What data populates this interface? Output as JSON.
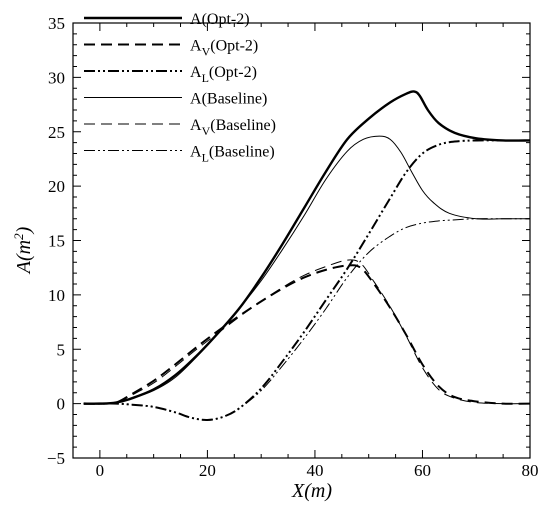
{
  "chart_data": {
    "type": "line",
    "title": "",
    "xlabel": "X(m)",
    "ylabel": "A(m²)",
    "xlim": [
      -5,
      80
    ],
    "ylim": [
      -5,
      35
    ],
    "xticks": [
      0,
      20,
      40,
      60,
      80
    ],
    "yticks": [
      -5,
      0,
      5,
      10,
      15,
      20,
      25,
      30,
      35
    ],
    "grid": false,
    "legend_position": "top-left",
    "series": [
      {
        "name": "A(Opt-2)",
        "style": "solid-thick",
        "x": [
          -3,
          0,
          3,
          6,
          10,
          14,
          18,
          22,
          26,
          30,
          34,
          38,
          42,
          46,
          50,
          54,
          57,
          58.5,
          59.5,
          61,
          63,
          66,
          70,
          75,
          80
        ],
        "y": [
          0,
          0,
          0.1,
          0.5,
          1.3,
          2.6,
          4.4,
          6.5,
          8.8,
          11.6,
          14.7,
          18.0,
          21.3,
          24.3,
          26.2,
          27.7,
          28.5,
          28.7,
          28.3,
          27.0,
          25.8,
          24.9,
          24.4,
          24.2,
          24.2
        ]
      },
      {
        "name": "A_V(Opt-2)",
        "style": "dashed-thick",
        "x": [
          -3,
          0,
          3,
          6,
          10,
          14,
          18,
          22,
          26,
          30,
          34,
          38,
          42,
          46,
          48.5,
          51,
          54,
          57,
          60,
          63,
          66,
          70,
          75,
          80
        ],
        "y": [
          0,
          0,
          0.1,
          0.9,
          2.1,
          3.6,
          5.2,
          6.7,
          8.1,
          9.4,
          10.6,
          11.6,
          12.3,
          12.7,
          12.5,
          11.0,
          8.8,
          6.3,
          3.6,
          1.6,
          0.6,
          0.2,
          0,
          0
        ]
      },
      {
        "name": "A_L(Opt-2)",
        "style": "dashdotdot-thick",
        "x": [
          -3,
          0,
          3,
          6,
          10,
          14,
          17,
          20,
          23,
          26,
          30,
          34,
          38,
          42,
          46,
          50,
          54,
          57,
          60,
          63,
          66,
          70,
          75,
          80
        ],
        "y": [
          0,
          0,
          0,
          -0.1,
          -0.3,
          -0.8,
          -1.3,
          -1.5,
          -1.2,
          -0.4,
          1.4,
          3.9,
          6.6,
          9.5,
          12.4,
          15.6,
          18.9,
          21.3,
          23.0,
          23.8,
          24.1,
          24.2,
          24.2,
          24.2
        ]
      },
      {
        "name": "A(Baseline)",
        "style": "solid-thin",
        "x": [
          -3,
          0,
          3,
          6,
          10,
          14,
          18,
          22,
          26,
          30,
          34,
          38,
          42,
          46,
          49,
          52,
          54,
          56,
          58,
          60,
          62,
          65,
          70,
          75,
          80
        ],
        "y": [
          0,
          0,
          0.1,
          0.5,
          1.2,
          2.4,
          4.3,
          6.5,
          8.8,
          11.3,
          14.2,
          17.3,
          20.6,
          23.2,
          24.3,
          24.6,
          24.3,
          23.1,
          21.3,
          19.6,
          18.5,
          17.5,
          17.0,
          17.0,
          17.0
        ]
      },
      {
        "name": "A_V(Baseline)",
        "style": "dashed-thin",
        "x": [
          -3,
          0,
          3,
          6,
          10,
          14,
          18,
          22,
          26,
          30,
          34,
          38,
          42,
          46,
          48.5,
          51,
          54,
          57,
          60,
          63,
          66,
          70,
          75,
          80
        ],
        "y": [
          0,
          0,
          0.1,
          0.8,
          1.9,
          3.4,
          5.0,
          6.5,
          8.0,
          9.4,
          10.7,
          11.8,
          12.6,
          13.2,
          12.9,
          11.2,
          8.9,
          6.2,
          3.3,
          1.3,
          0.5,
          0.1,
          0,
          0
        ]
      },
      {
        "name": "A_L(Baseline)",
        "style": "dashdotdot-thin",
        "x": [
          -3,
          0,
          3,
          6,
          10,
          14,
          17,
          20,
          23,
          26,
          30,
          34,
          38,
          42,
          46,
          50,
          54,
          57,
          60,
          63,
          66,
          70,
          75,
          80
        ],
        "y": [
          0,
          0,
          0,
          -0.1,
          -0.3,
          -0.8,
          -1.3,
          -1.5,
          -1.2,
          -0.4,
          1.2,
          3.5,
          6.0,
          8.7,
          11.6,
          13.9,
          15.4,
          16.2,
          16.6,
          16.8,
          16.9,
          17.0,
          17.0,
          17.0
        ]
      }
    ],
    "legend": [
      {
        "base": "A",
        "sub": "",
        "suffix": "(Opt-2)"
      },
      {
        "base": "A",
        "sub": "V",
        "suffix": "(Opt-2)"
      },
      {
        "base": "A",
        "sub": "L",
        "suffix": "(Opt-2)"
      },
      {
        "base": "A",
        "sub": "",
        "suffix": "(Baseline)"
      },
      {
        "base": "A",
        "sub": "V",
        "suffix": "(Baseline)"
      },
      {
        "base": "A",
        "sub": "L",
        "suffix": "(Baseline)"
      }
    ]
  }
}
